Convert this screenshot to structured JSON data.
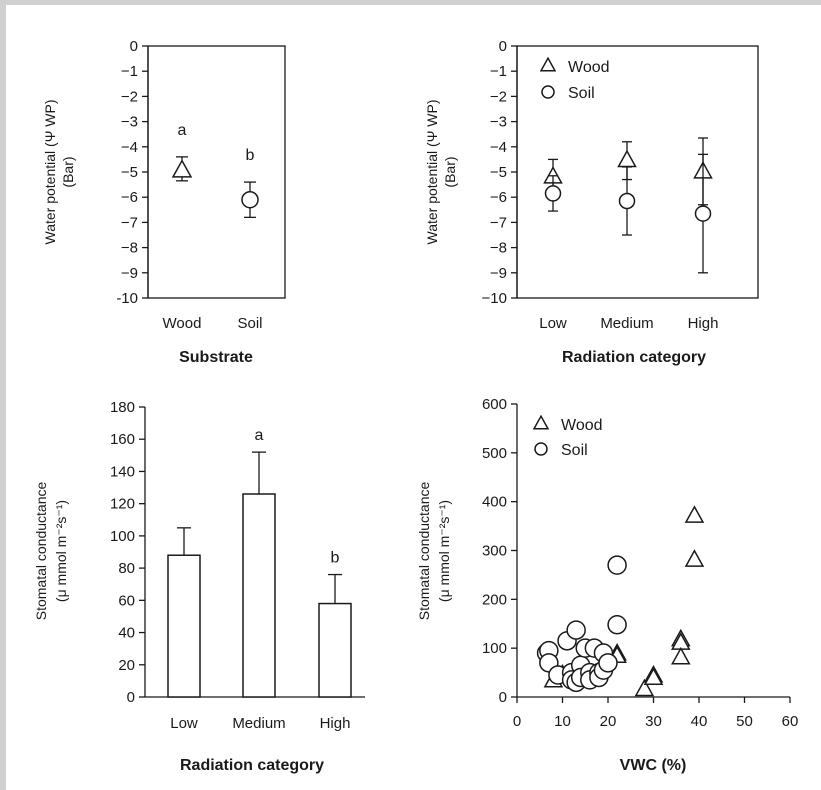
{
  "chart_data": [
    {
      "id": "panel-a",
      "type": "scatter",
      "title": "",
      "xlabel": "Substrate",
      "ylabel": [
        "Water potential (Ψ WP)",
        "(Bar)"
      ],
      "ylim": [
        -10,
        0
      ],
      "yticks": [
        0,
        -1,
        -2,
        -3,
        -4,
        -5,
        -6,
        -7,
        -8,
        -9,
        -10
      ],
      "ytick_labels": [
        "0",
        "−1",
        "−2",
        "−3",
        "−4",
        "−5",
        "−6",
        "−7",
        "−8",
        "−9",
        "-10"
      ],
      "categories": [
        "Wood",
        "Soil"
      ],
      "points": [
        {
          "category": "Wood",
          "marker": "triangle",
          "y": -4.95,
          "err_low": -5.35,
          "err_high": -4.4,
          "label": "a"
        },
        {
          "category": "Soil",
          "marker": "circle",
          "y": -6.1,
          "err_low": -6.8,
          "err_high": -5.4,
          "label": "b"
        }
      ]
    },
    {
      "id": "panel-b",
      "type": "scatter",
      "title": "",
      "xlabel": "Radiation category",
      "ylabel": [
        "Water potential (Ψ WP)",
        "(Bar)"
      ],
      "ylim": [
        -10,
        0
      ],
      "yticks": [
        0,
        -1,
        -2,
        -3,
        -4,
        -5,
        -6,
        -7,
        -8,
        -9,
        -10
      ],
      "ytick_labels": [
        "0",
        "−1",
        "−2",
        "−3",
        "−4",
        "−5",
        "−6",
        "−7",
        "−8",
        "−9",
        "−10"
      ],
      "categories": [
        "Low",
        "Medium",
        "High"
      ],
      "legend": {
        "placement": "top-left",
        "entries": [
          {
            "name": "Wood",
            "marker": "triangle"
          },
          {
            "name": "Soil",
            "marker": "circle"
          }
        ]
      },
      "series": [
        {
          "name": "Wood",
          "marker": "triangle",
          "values": [
            -5.2,
            -4.55,
            -5.0
          ],
          "err_low": [
            -5.8,
            -5.3,
            -6.3
          ],
          "err_high": [
            -4.5,
            -3.8,
            -3.65
          ]
        },
        {
          "name": "Soil",
          "marker": "circle",
          "values": [
            -5.85,
            -6.15,
            -6.65
          ],
          "err_low": [
            -6.55,
            -7.5,
            -9.0
          ],
          "err_high": [
            -5.15,
            -4.8,
            -4.3
          ]
        }
      ]
    },
    {
      "id": "panel-c",
      "type": "bar",
      "title": "",
      "xlabel": "Radiation category",
      "ylabel": [
        "Stomatal conductance",
        "(μ mmol m⁻²s⁻¹)"
      ],
      "ylim": [
        0,
        180
      ],
      "yticks": [
        0,
        20,
        40,
        60,
        80,
        100,
        120,
        140,
        160,
        180
      ],
      "categories": [
        "Low",
        "Medium",
        "High"
      ],
      "values": [
        88,
        126,
        58
      ],
      "err_high": [
        105,
        152,
        76
      ],
      "labels": [
        "",
        "a",
        "b"
      ]
    },
    {
      "id": "panel-d",
      "type": "scatter",
      "title": "",
      "xlabel": "VWC (%)",
      "ylabel": [
        "Stomatal conductance",
        "(μ mmol  m⁻²s⁻¹)"
      ],
      "xlim": [
        0,
        60
      ],
      "ylim": [
        0,
        600
      ],
      "xticks": [
        0,
        10,
        20,
        30,
        40,
        50,
        60
      ],
      "yticks": [
        0,
        100,
        200,
        300,
        400,
        500,
        600
      ],
      "legend": {
        "placement": "top-left",
        "entries": [
          {
            "name": "Wood",
            "marker": "triangle"
          },
          {
            "name": "Soil",
            "marker": "circle"
          }
        ]
      },
      "series": [
        {
          "name": "Wood",
          "marker": "triangle",
          "x": [
            8,
            10,
            22,
            22,
            28,
            30,
            30,
            36,
            36,
            36,
            39,
            39
          ],
          "y": [
            33,
            45,
            88,
            83,
            15,
            43,
            38,
            117,
            110,
            80,
            370,
            280
          ]
        },
        {
          "name": "Soil",
          "marker": "circle",
          "x": [
            6.5,
            7,
            7,
            9,
            11,
            12,
            12,
            13,
            13,
            14,
            14,
            15,
            16,
            16,
            17,
            18,
            18,
            19,
            19,
            20,
            22,
            22
          ],
          "y": [
            90,
            95,
            70,
            45,
            115,
            50,
            35,
            137,
            30,
            65,
            40,
            100,
            50,
            35,
            100,
            50,
            40,
            55,
            90,
            70,
            270,
            148
          ]
        }
      ]
    }
  ]
}
